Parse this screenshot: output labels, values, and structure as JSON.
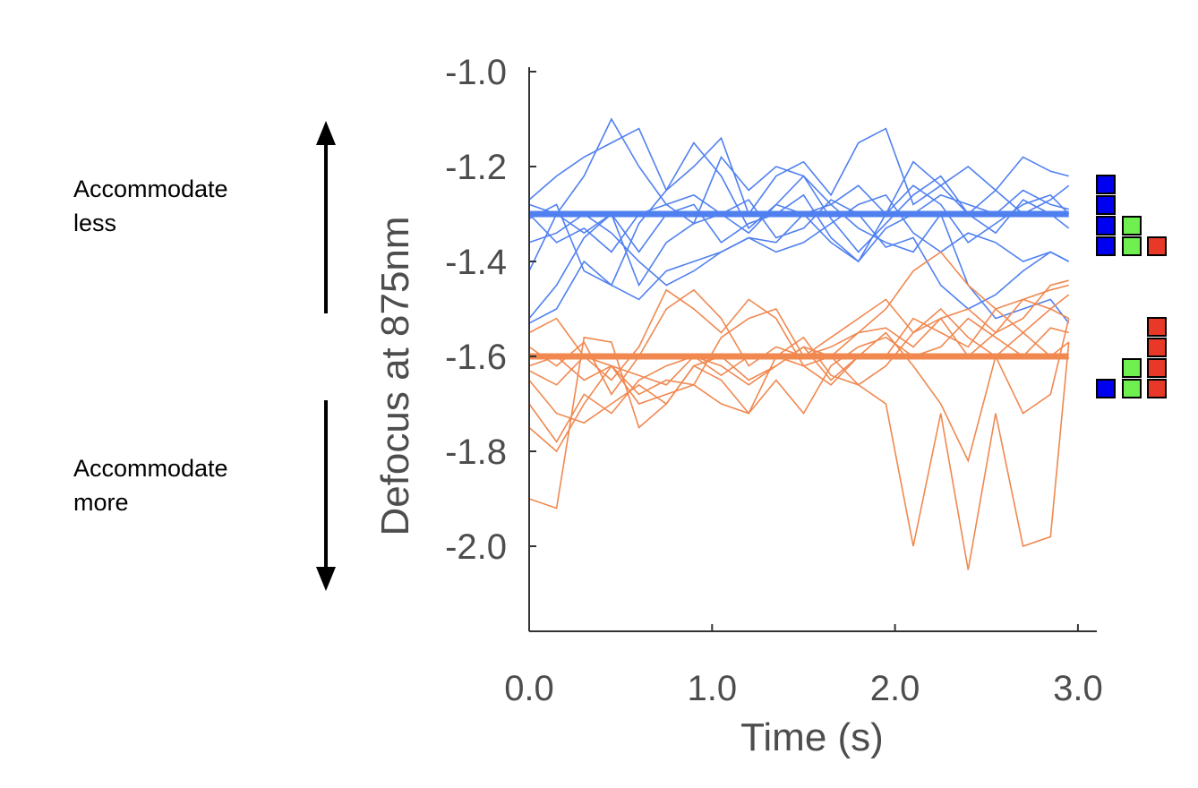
{
  "chart_data": {
    "type": "line",
    "xlabel": "Time (s)",
    "ylabel": "Defocus at 875nm",
    "xlim": [
      0,
      3.0
    ],
    "ylim": [
      -2.18,
      -0.99
    ],
    "x_ticks": [
      0,
      1,
      2,
      3
    ],
    "x_tick_labels": [
      "0.0",
      "1.0",
      "2.0",
      "3.0"
    ],
    "y_ticks": [
      -1.0,
      -1.2,
      -1.4,
      -1.6,
      -1.8,
      -2.0
    ],
    "y_tick_labels": [
      "-1.0",
      "-1.2",
      "-1.4",
      "-1.6",
      "-1.8",
      "-2.0"
    ],
    "grid": false,
    "annotations": {
      "up": [
        "Accommodate",
        "less"
      ],
      "down": [
        "Accommodate",
        "more"
      ]
    },
    "x": [
      0,
      0.15,
      0.3,
      0.45,
      0.6,
      0.75,
      0.9,
      1.05,
      1.2,
      1.35,
      1.5,
      1.65,
      1.8,
      1.95,
      2.1,
      2.25,
      2.4,
      2.55,
      2.7,
      2.85,
      2.95
    ],
    "series": [
      {
        "name": "blue",
        "color": "#5080f0",
        "mean": -1.3,
        "traces": [
          [
            -1.27,
            -1.22,
            -1.18,
            -1.15,
            -1.12,
            -1.25,
            -1.2,
            -1.14,
            -1.3,
            -1.22,
            -1.19,
            -1.26,
            -1.15,
            -1.12,
            -1.28,
            -1.24,
            -1.2,
            -1.25,
            -1.3,
            -1.27,
            -1.24
          ],
          [
            -1.42,
            -1.3,
            -1.22,
            -1.1,
            -1.2,
            -1.28,
            -1.32,
            -1.18,
            -1.25,
            -1.2,
            -1.22,
            -1.28,
            -1.24,
            -1.3,
            -1.19,
            -1.24,
            -1.3,
            -1.25,
            -1.18,
            -1.21,
            -1.22
          ],
          [
            -1.52,
            -1.45,
            -1.35,
            -1.3,
            -1.38,
            -1.3,
            -1.28,
            -1.36,
            -1.32,
            -1.3,
            -1.26,
            -1.35,
            -1.4,
            -1.3,
            -1.24,
            -1.28,
            -1.36,
            -1.32,
            -1.28,
            -1.26,
            -1.3
          ],
          [
            -1.31,
            -1.28,
            -1.42,
            -1.45,
            -1.32,
            -1.25,
            -1.15,
            -1.22,
            -1.33,
            -1.28,
            -1.22,
            -1.31,
            -1.38,
            -1.32,
            -1.26,
            -1.22,
            -1.3,
            -1.34,
            -1.27,
            -1.3,
            -1.33
          ],
          [
            -1.28,
            -1.3,
            -1.34,
            -1.3,
            -1.45,
            -1.36,
            -1.32,
            -1.3,
            -1.27,
            -1.35,
            -1.33,
            -1.27,
            -1.3,
            -1.37,
            -1.35,
            -1.45,
            -1.5,
            -1.47,
            -1.42,
            -1.38,
            -1.4
          ],
          [
            -1.3,
            -1.36,
            -1.33,
            -1.38,
            -1.3,
            -1.28,
            -1.26,
            -1.3,
            -1.34,
            -1.28,
            -1.3,
            -1.36,
            -1.4,
            -1.33,
            -1.3,
            -1.26,
            -1.28,
            -1.3,
            -1.25,
            -1.28,
            -1.29
          ],
          [
            -1.36,
            -1.34,
            -1.3,
            -1.34,
            -1.4,
            -1.45,
            -1.42,
            -1.38,
            -1.35,
            -1.38,
            -1.36,
            -1.32,
            -1.28,
            -1.26,
            -1.34,
            -1.38,
            -1.34,
            -1.36,
            -1.4,
            -1.38,
            -1.4
          ],
          [
            -1.53,
            -1.5,
            -1.4,
            -1.45,
            -1.48,
            -1.42,
            -1.4,
            -1.38,
            -1.35,
            -1.36,
            -1.3,
            -1.28,
            -1.33,
            -1.36,
            -1.38,
            -1.3,
            -1.45,
            -1.52,
            -1.5,
            -1.48,
            -1.53
          ]
        ]
      },
      {
        "name": "orange",
        "color": "#f08850",
        "mean": -1.6,
        "traces": [
          [
            -1.55,
            -1.52,
            -1.6,
            -1.65,
            -1.58,
            -1.46,
            -1.5,
            -1.55,
            -1.48,
            -1.52,
            -1.62,
            -1.6,
            -1.55,
            -1.5,
            -1.42,
            -1.38,
            -1.45,
            -1.5,
            -1.48,
            -1.46,
            -1.45
          ],
          [
            -1.58,
            -1.62,
            -1.57,
            -1.68,
            -1.6,
            -1.5,
            -1.46,
            -1.52,
            -1.62,
            -1.58,
            -1.6,
            -1.56,
            -1.52,
            -1.48,
            -1.55,
            -1.52,
            -1.6,
            -1.55,
            -1.52,
            -1.45,
            -1.44
          ],
          [
            -1.63,
            -1.66,
            -1.6,
            -1.62,
            -1.68,
            -1.65,
            -1.66,
            -1.56,
            -1.52,
            -1.5,
            -1.6,
            -1.58,
            -1.55,
            -1.54,
            -1.58,
            -1.52,
            -1.5,
            -1.55,
            -1.48,
            -1.5,
            -1.52
          ],
          [
            -1.65,
            -1.72,
            -1.74,
            -1.7,
            -1.66,
            -1.7,
            -1.62,
            -1.65,
            -1.72,
            -1.65,
            -1.72,
            -1.62,
            -1.58,
            -1.56,
            -1.6,
            -1.58,
            -1.52,
            -1.56,
            -1.6,
            -1.54,
            -1.55
          ],
          [
            -1.7,
            -1.78,
            -1.68,
            -1.72,
            -1.65,
            -1.62,
            -1.6,
            -1.64,
            -1.6,
            -1.6,
            -1.56,
            -1.64,
            -1.66,
            -1.62,
            -1.55,
            -1.5,
            -1.56,
            -1.6,
            -1.55,
            -1.6,
            -1.57
          ],
          [
            -1.75,
            -1.8,
            -1.7,
            -1.62,
            -1.7,
            -1.68,
            -1.66,
            -1.7,
            -1.72,
            -1.6,
            -1.62,
            -1.66,
            -1.6,
            -1.6,
            -1.52,
            -1.55,
            -1.58,
            -1.5,
            -1.55,
            -1.5,
            -1.47
          ],
          [
            -1.9,
            -1.92,
            -1.56,
            -1.57,
            -1.75,
            -1.7,
            -1.62,
            -1.6,
            -1.65,
            -1.62,
            -1.58,
            -1.65,
            -1.6,
            -1.55,
            -1.62,
            -1.7,
            -1.82,
            -1.6,
            -1.72,
            -1.68,
            -1.52
          ],
          [
            -1.62,
            -1.6,
            -1.65,
            -1.62,
            -1.64,
            -1.66,
            -1.6,
            -1.62,
            -1.66,
            -1.62,
            -1.58,
            -1.6,
            -1.66,
            -1.7,
            -2.0,
            -1.72,
            -2.05,
            -1.72,
            -2.0,
            -1.98,
            -1.57
          ]
        ]
      }
    ],
    "legend_blocks": [
      {
        "group": "blue-condition",
        "counts": {
          "blue": 4,
          "green": 2,
          "red": 1
        }
      },
      {
        "group": "orange-condition",
        "counts": {
          "blue": 1,
          "green": 2,
          "red": 4
        }
      }
    ],
    "block_colors": {
      "blue": "#0000f0",
      "green": "#70f050",
      "red": "#e83828"
    }
  }
}
